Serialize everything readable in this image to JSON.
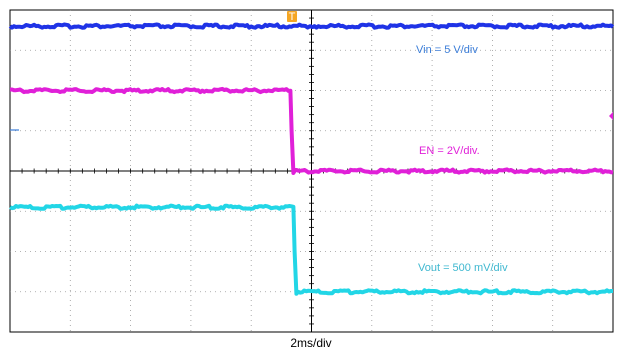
{
  "chart_data": {
    "type": "line",
    "title": "",
    "grid": true,
    "x_divisions": 10,
    "y_divisions": 8,
    "time_scale_label": "2ms/div",
    "x_unit": "div",
    "y_unit": "div",
    "series": [
      {
        "name": "Vin = 5 V/div",
        "color": "#1f33e6",
        "x": [
          0,
          4.9,
          5.05,
          10
        ],
        "y": [
          3.6,
          3.6,
          3.6,
          3.6
        ]
      },
      {
        "name": "EN = 2V/div.",
        "color": "#e020d8",
        "x": [
          0,
          4.65,
          4.67,
          4.7,
          4.72,
          10
        ],
        "y": [
          2.0,
          2.0,
          1.0,
          -0.05,
          0.0,
          0.0
        ]
      },
      {
        "name": "Vout = 500 mV/div",
        "color": "#22d6e6",
        "x": [
          0,
          4.7,
          4.72,
          4.75,
          4.78,
          10
        ],
        "y": [
          -0.9,
          -0.9,
          -2.0,
          -3.05,
          -3.0,
          -3.0
        ]
      }
    ]
  },
  "markers": {
    "trigger_label": "T",
    "trigger_color": "#f5a623",
    "trigger_level_color": "#e020d8",
    "ground_ref_color": "#3b7dd8"
  }
}
